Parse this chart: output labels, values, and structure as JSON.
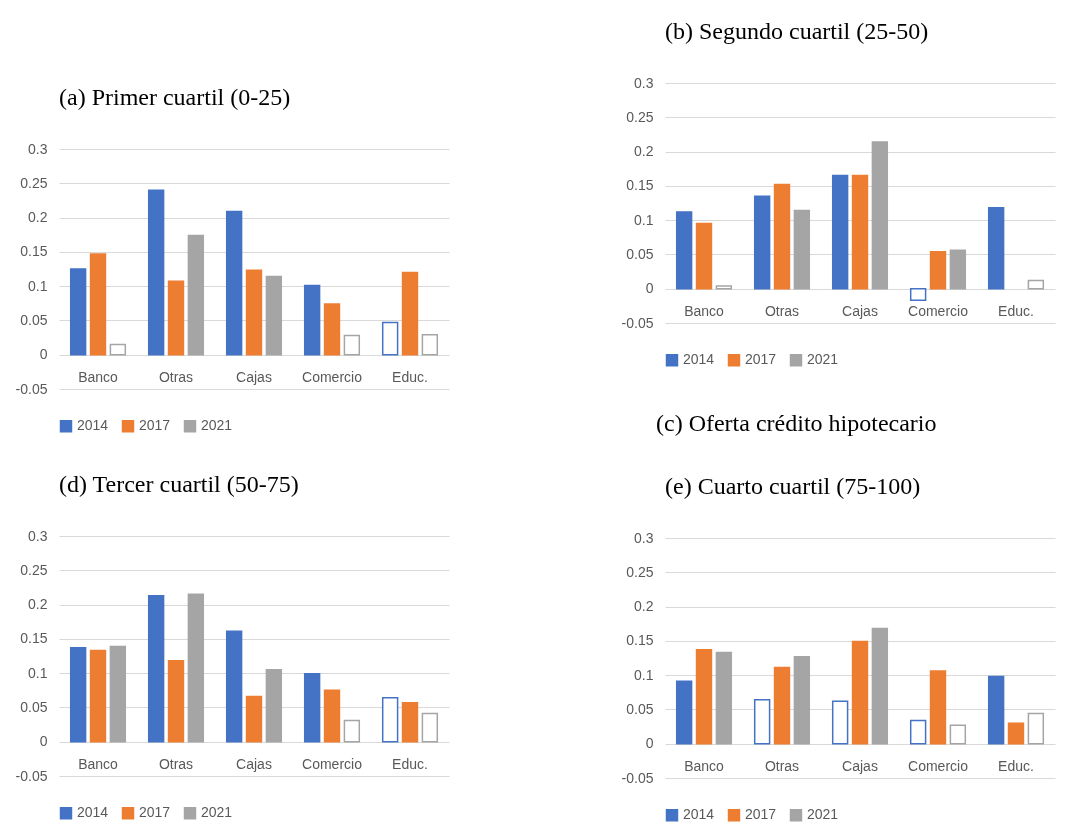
{
  "chart_data": [
    {
      "type": "bar",
      "title": "(a) Primer cuartil (0-25)",
      "categories": [
        "Banco",
        "Otras",
        "Cajas",
        "Comercio",
        "Educ."
      ],
      "ylim": [
        -0.05,
        0.3
      ],
      "yticks": [
        -0.05,
        0,
        0.05,
        0.1,
        0.15,
        0.2,
        0.25,
        0.3
      ],
      "grid": "y",
      "legend": "bottom",
      "series": [
        {
          "name": "2014",
          "color": "#4472c4",
          "values": [
            0.125,
            0.24,
            0.209,
            0.101,
            0.047
          ],
          "colors": [
            "#4472c4",
            "#4472c4",
            "#4472c4",
            "#4472c4",
            "#ffffff"
          ]
        },
        {
          "name": "2017",
          "color": "#ed7d31",
          "values": [
            0.147,
            0.107,
            0.123,
            0.074,
            0.12
          ],
          "colors": [
            "#ed7d31",
            "#ed7d31",
            "#ed7d31",
            "#ed7d31",
            "#ed7d31"
          ]
        },
        {
          "name": "2021",
          "color": "#a5a5a5",
          "values": [
            0.015,
            0.174,
            0.114,
            0.028,
            0.029
          ],
          "colors": [
            "#ffffff",
            "#a5a5a5",
            "#a5a5a5",
            "#ffffff",
            "#ffffff"
          ]
        }
      ]
    },
    {
      "type": "bar",
      "title": "(b) Segundo cuartil (25-50)",
      "annotations": [
        "(c) Oferta crédito hipotecario"
      ],
      "categories": [
        "Banco",
        "Otras",
        "Cajas",
        "Comercio",
        "Educ."
      ],
      "ylim": [
        -0.05,
        0.3
      ],
      "yticks": [
        -0.05,
        0,
        0.05,
        0.1,
        0.15,
        0.2,
        0.25,
        0.3
      ],
      "grid": "y",
      "legend": "bottom",
      "series": [
        {
          "name": "2014",
          "color": "#4472c4",
          "values": [
            0.112,
            0.135,
            0.165,
            -0.017,
            0.118
          ],
          "colors": [
            "#4472c4",
            "#4472c4",
            "#4472c4",
            "#ffffff",
            "#4472c4"
          ]
        },
        {
          "name": "2017",
          "color": "#ed7d31",
          "values": [
            0.095,
            0.152,
            0.165,
            0.054,
            null
          ],
          "colors": [
            "#ed7d31",
            "#ed7d31",
            "#ed7d31",
            "#ed7d31",
            null
          ]
        },
        {
          "name": "2021",
          "color": "#a5a5a5",
          "values": [
            0.004,
            0.114,
            0.214,
            0.056,
            0.012
          ],
          "colors": [
            "#ffffff",
            "#a5a5a5",
            "#a5a5a5",
            "#a5a5a5",
            "#ffffff"
          ]
        }
      ]
    },
    {
      "type": "bar",
      "title": "(d) Tercer cuartil (50-75)",
      "categories": [
        "Banco",
        "Otras",
        "Cajas",
        "Comercio",
        "Educ."
      ],
      "ylim": [
        -0.05,
        0.3
      ],
      "yticks": [
        -0.05,
        0,
        0.05,
        0.1,
        0.15,
        0.2,
        0.25,
        0.3
      ],
      "grid": "y",
      "legend": "bottom",
      "series": [
        {
          "name": "2014",
          "color": "#4472c4",
          "values": [
            0.137,
            0.213,
            0.161,
            0.099,
            0.064
          ],
          "colors": [
            "#4472c4",
            "#4472c4",
            "#4472c4",
            "#4472c4",
            "#ffffff"
          ]
        },
        {
          "name": "2017",
          "color": "#ed7d31",
          "values": [
            0.133,
            0.118,
            0.066,
            0.075,
            0.057
          ],
          "colors": [
            "#ed7d31",
            "#ed7d31",
            "#ed7d31",
            "#ed7d31",
            "#ed7d31"
          ]
        },
        {
          "name": "2021",
          "color": "#a5a5a5",
          "values": [
            0.139,
            0.215,
            0.105,
            0.031,
            0.041
          ],
          "colors": [
            "#a5a5a5",
            "#a5a5a5",
            "#a5a5a5",
            "#ffffff",
            "#ffffff"
          ]
        }
      ]
    },
    {
      "type": "bar",
      "title": "(e) Cuarto cuartil (75-100)",
      "categories": [
        "Banco",
        "Otras",
        "Cajas",
        "Comercio",
        "Educ."
      ],
      "ylim": [
        -0.05,
        0.3
      ],
      "yticks": [
        -0.05,
        0,
        0.05,
        0.1,
        0.15,
        0.2,
        0.25,
        0.3
      ],
      "grid": "y",
      "legend": "bottom",
      "series": [
        {
          "name": "2014",
          "color": "#4472c4",
          "values": [
            0.091,
            0.064,
            0.062,
            0.034,
            0.098
          ],
          "colors": [
            "#4472c4",
            "#ffffff",
            "#ffffff",
            "#ffffff",
            "#4472c4"
          ]
        },
        {
          "name": "2017",
          "color": "#ed7d31",
          "values": [
            0.137,
            0.111,
            0.149,
            0.106,
            0.03
          ],
          "colors": [
            "#ed7d31",
            "#ed7d31",
            "#ed7d31",
            "#ed7d31",
            "#ed7d31"
          ]
        },
        {
          "name": "2021",
          "color": "#a5a5a5",
          "values": [
            0.133,
            0.127,
            0.168,
            0.027,
            0.044
          ],
          "colors": [
            "#a5a5a5",
            "#a5a5a5",
            "#a5a5a5",
            "#ffffff",
            "#ffffff"
          ]
        }
      ]
    }
  ]
}
